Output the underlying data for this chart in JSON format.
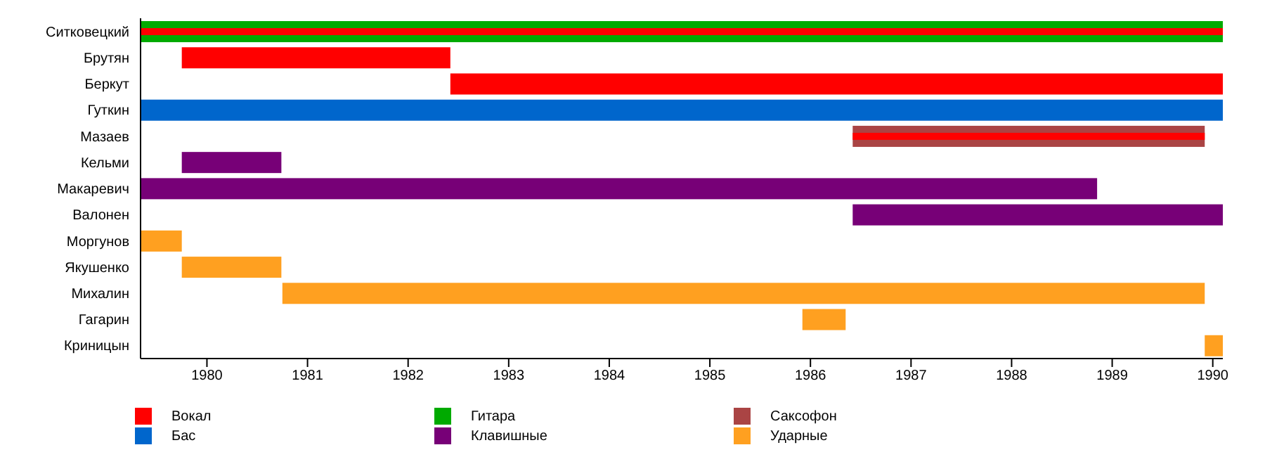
{
  "chart_data": {
    "type": "bar",
    "orientation": "horizontal",
    "categories": [
      "Ситковецкий",
      "Брутян",
      "Беркут",
      "Гуткин",
      "Мазаев",
      "Кельми",
      "Макаревич",
      "Валонен",
      "Моргунов",
      "Якушенко",
      "Михалин",
      "Гагарин",
      "Криницын"
    ],
    "series": [
      {
        "name": "Вокал",
        "color": "#ff0000",
        "base": [
          1979.34,
          1979.75,
          1982.42,
          null,
          1986.42,
          null,
          null,
          null,
          null,
          null,
          null,
          null,
          null
        ],
        "values": [
          10.76,
          2.67,
          7.68,
          null,
          3.5,
          null,
          null,
          null,
          null,
          null,
          null,
          null,
          null
        ]
      },
      {
        "name": "Бас",
        "color": "#0066cc",
        "base": [
          null,
          null,
          null,
          1979.34,
          null,
          null,
          null,
          null,
          null,
          null,
          null,
          null,
          null
        ],
        "values": [
          null,
          null,
          null,
          10.76,
          null,
          null,
          null,
          null,
          null,
          null,
          null,
          null,
          null
        ]
      },
      {
        "name": "Гитара",
        "color": "#00aa00",
        "base": [
          1979.34,
          null,
          null,
          null,
          null,
          null,
          null,
          null,
          null,
          null,
          null,
          null,
          null
        ],
        "values": [
          10.76,
          null,
          null,
          null,
          null,
          null,
          null,
          null,
          null,
          null,
          null,
          null,
          null
        ]
      },
      {
        "name": "Клавишные",
        "color": "#770077",
        "base": [
          null,
          null,
          null,
          null,
          null,
          1979.75,
          1979.34,
          1986.42,
          null,
          null,
          null,
          null,
          null
        ],
        "values": [
          null,
          null,
          null,
          null,
          null,
          0.99,
          9.51,
          3.68,
          null,
          null,
          null,
          null,
          null
        ]
      },
      {
        "name": "Саксофон",
        "color": "#aa4444",
        "base": [
          null,
          null,
          null,
          null,
          1986.42,
          null,
          null,
          null,
          null,
          null,
          null,
          null,
          null
        ],
        "values": [
          null,
          null,
          null,
          null,
          3.5,
          null,
          null,
          null,
          null,
          null,
          null,
          null,
          null
        ]
      },
      {
        "name": "Ударные",
        "color": "#ffa020",
        "base": [
          null,
          null,
          null,
          null,
          null,
          null,
          null,
          null,
          1979.34,
          1979.75,
          1980.75,
          1985.92,
          1989.92
        ],
        "values": [
          null,
          null,
          null,
          null,
          null,
          null,
          null,
          null,
          0.41,
          0.99,
          9.17,
          0.43,
          0.18
        ]
      }
    ],
    "xlim": [
      1979.34,
      1990.1
    ],
    "xticks": [
      1980,
      1981,
      1982,
      1983,
      1984,
      1985,
      1986,
      1987,
      1988,
      1989,
      1990
    ],
    "grid": false,
    "legend": "bottom"
  }
}
